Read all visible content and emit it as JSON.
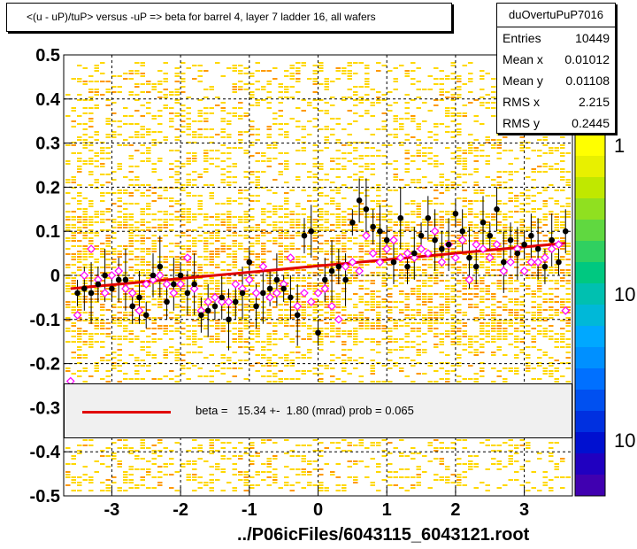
{
  "title": "<(u - uP)/tuP> versus  -uP => beta for barrel 4, layer 7 ladder 16, all wafers",
  "stats": {
    "name": "duOvertuPuP7016",
    "rows": [
      {
        "label": "Entries",
        "value": "10449"
      },
      {
        "label": "Mean x",
        "value": "0.01012"
      },
      {
        "label": "Mean y",
        "value": "0.01108"
      },
      {
        "label": "RMS x",
        "value": "2.215"
      },
      {
        "label": "RMS y",
        "value": "0.2445"
      }
    ]
  },
  "fit_legend": "beta =   15.34 +-  1.80 (mrad) prob = 0.065",
  "x_title": "../P06icFiles/6043115_6043121.root",
  "colors": {
    "fit": "#e00000",
    "points": "#000000",
    "markers": "#ff00ff",
    "hist": "#ffd800",
    "hist_dense": "#ff9900"
  },
  "palette_labels": [
    "1",
    "10",
    "10"
  ],
  "chart_data": {
    "type": "scatter",
    "xlim": [
      -3.7,
      3.7
    ],
    "ylim": [
      -0.5,
      0.5
    ],
    "x_ticks": [
      "-3",
      "-2",
      "-1",
      "0",
      "1",
      "2",
      "3"
    ],
    "x_tick_values": [
      -3,
      -2,
      -1,
      0,
      1,
      2,
      3
    ],
    "y_ticks": [
      "-0.5",
      "-0.4",
      "-0.3",
      "-0.2",
      "-0.1",
      "0",
      "0.1",
      "0.2",
      "0.3",
      "0.4",
      "0.5"
    ],
    "y_tick_values": [
      -0.5,
      -0.4,
      -0.3,
      -0.2,
      -0.1,
      0,
      0.1,
      0.2,
      0.3,
      0.4,
      0.5
    ],
    "grid": true,
    "fit_line": {
      "x": [
        -3.6,
        3.6
      ],
      "y": [
        -0.03,
        0.073
      ]
    },
    "profile_points": [
      [
        -3.5,
        -0.04
      ],
      [
        -3.4,
        -0.03
      ],
      [
        -3.3,
        -0.04
      ],
      [
        -3.2,
        -0.02
      ],
      [
        -3.1,
        0.0
      ],
      [
        -3.0,
        -0.03
      ],
      [
        -2.9,
        -0.01
      ],
      [
        -2.8,
        -0.01
      ],
      [
        -2.7,
        -0.07
      ],
      [
        -2.6,
        -0.05
      ],
      [
        -2.5,
        -0.09
      ],
      [
        -2.4,
        0.0
      ],
      [
        -2.3,
        0.02
      ],
      [
        -2.2,
        -0.06
      ],
      [
        -2.1,
        -0.02
      ],
      [
        -2.0,
        0.0
      ],
      [
        -1.9,
        -0.04
      ],
      [
        -1.8,
        -0.02
      ],
      [
        -1.7,
        -0.09
      ],
      [
        -1.6,
        -0.08
      ],
      [
        -1.5,
        -0.07
      ],
      [
        -1.4,
        -0.05
      ],
      [
        -1.3,
        -0.1
      ],
      [
        -1.2,
        -0.06
      ],
      [
        -1.1,
        -0.04
      ],
      [
        -1.0,
        0.03
      ],
      [
        -0.9,
        -0.07
      ],
      [
        -0.8,
        -0.04
      ],
      [
        -0.7,
        -0.03
      ],
      [
        -0.6,
        -0.01
      ],
      [
        -0.5,
        -0.03
      ],
      [
        -0.4,
        -0.05
      ],
      [
        -0.3,
        -0.09
      ],
      [
        -0.2,
        0.09
      ],
      [
        -0.1,
        0.1
      ],
      [
        0.0,
        -0.13
      ],
      [
        0.1,
        -0.01
      ],
      [
        0.2,
        0.01
      ],
      [
        0.3,
        0.02
      ],
      [
        0.4,
        -0.01
      ],
      [
        0.5,
        0.12
      ],
      [
        0.6,
        0.17
      ],
      [
        0.7,
        0.15
      ],
      [
        0.8,
        0.11
      ],
      [
        0.9,
        0.1
      ],
      [
        1.0,
        0.08
      ],
      [
        1.1,
        0.03
      ],
      [
        1.2,
        0.13
      ],
      [
        1.3,
        0.02
      ],
      [
        1.4,
        0.05
      ],
      [
        1.5,
        0.09
      ],
      [
        1.6,
        0.13
      ],
      [
        1.7,
        0.08
      ],
      [
        1.8,
        0.06
      ],
      [
        1.9,
        0.07
      ],
      [
        2.0,
        0.14
      ],
      [
        2.1,
        0.1
      ],
      [
        2.2,
        0.04
      ],
      [
        2.3,
        0.02
      ],
      [
        2.4,
        0.12
      ],
      [
        2.5,
        0.09
      ],
      [
        2.6,
        0.15
      ],
      [
        2.7,
        0.03
      ],
      [
        2.8,
        0.08
      ],
      [
        2.9,
        0.05
      ],
      [
        3.0,
        0.07
      ],
      [
        3.1,
        0.09
      ],
      [
        3.2,
        0.06
      ],
      [
        3.3,
        0.02
      ],
      [
        3.4,
        0.08
      ],
      [
        3.5,
        0.03
      ],
      [
        3.6,
        0.1
      ]
    ],
    "marker_points": [
      [
        -3.6,
        -0.24
      ],
      [
        -3.5,
        -0.09
      ],
      [
        -3.4,
        0.0
      ],
      [
        -3.3,
        0.06
      ],
      [
        -3.2,
        -0.01
      ],
      [
        -3.1,
        -0.04
      ],
      [
        -3.0,
        0.0
      ],
      [
        -2.9,
        0.01
      ],
      [
        -2.8,
        -0.03
      ],
      [
        -2.7,
        -0.04
      ],
      [
        -2.6,
        -0.08
      ],
      [
        -2.5,
        -0.02
      ],
      [
        -2.4,
        -0.01
      ],
      [
        -2.3,
        0.0
      ],
      [
        -2.2,
        -0.02
      ],
      [
        -2.1,
        -0.04
      ],
      [
        -2.0,
        -0.02
      ],
      [
        -1.9,
        0.04
      ],
      [
        -1.8,
        -0.03
      ],
      [
        -1.7,
        -0.08
      ],
      [
        -1.6,
        -0.06
      ],
      [
        -1.5,
        -0.05
      ],
      [
        -1.4,
        -0.06
      ],
      [
        -1.3,
        -0.06
      ],
      [
        -1.2,
        -0.02
      ],
      [
        -1.1,
        -0.03
      ],
      [
        -1.0,
        -0.01
      ],
      [
        -0.9,
        -0.04
      ],
      [
        -0.8,
        0.02
      ],
      [
        -0.7,
        -0.05
      ],
      [
        -0.6,
        -0.04
      ],
      [
        -0.5,
        -0.02
      ],
      [
        -0.4,
        0.04
      ],
      [
        -0.3,
        -0.07
      ],
      [
        -0.2,
        -0.04
      ],
      [
        -0.1,
        -0.06
      ],
      [
        0.0,
        -0.04
      ],
      [
        0.1,
        -0.03
      ],
      [
        0.2,
        -0.07
      ],
      [
        0.3,
        -0.1
      ],
      [
        0.4,
        0.02
      ],
      [
        0.5,
        0.03
      ],
      [
        0.6,
        0.01
      ],
      [
        0.7,
        0.09
      ],
      [
        0.8,
        0.05
      ],
      [
        0.9,
        0.03
      ],
      [
        1.0,
        0.06
      ],
      [
        1.1,
        0.08
      ],
      [
        1.2,
        0.04
      ],
      [
        1.3,
        0.05
      ],
      [
        1.4,
        0.04
      ],
      [
        1.5,
        0.06
      ],
      [
        1.6,
        0.05
      ],
      [
        1.7,
        0.1
      ],
      [
        1.8,
        0.03
      ],
      [
        1.9,
        0.07
      ],
      [
        2.0,
        0.04
      ],
      [
        2.1,
        0.08
      ],
      [
        2.2,
        -0.01
      ],
      [
        2.3,
        0.07
      ],
      [
        2.4,
        0.06
      ],
      [
        2.5,
        0.04
      ],
      [
        2.6,
        0.07
      ],
      [
        2.7,
        0.01
      ],
      [
        2.8,
        0.03
      ],
      [
        2.9,
        0.06
      ],
      [
        3.0,
        0.01
      ],
      [
        3.1,
        0.03
      ],
      [
        3.2,
        0.03
      ],
      [
        3.3,
        0.04
      ],
      [
        3.4,
        0.06
      ],
      [
        3.5,
        0.07
      ],
      [
        3.6,
        -0.08
      ]
    ]
  }
}
